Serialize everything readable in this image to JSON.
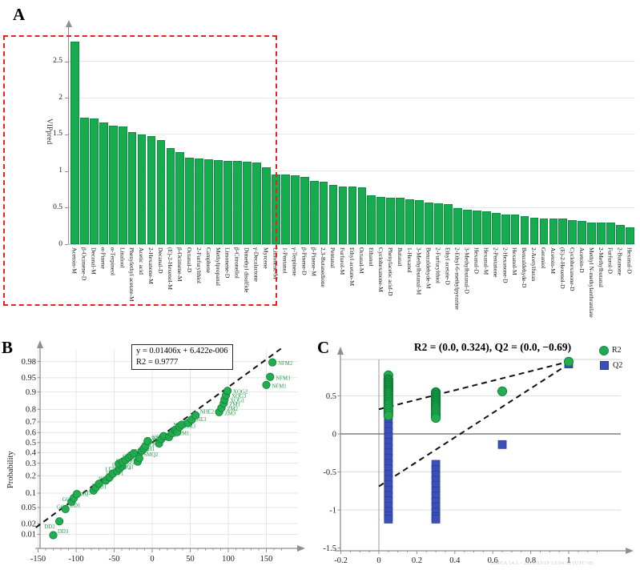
{
  "figure": {
    "footer_watermark": "SIMCA 14.1 - 2020/03/19 13:04:32 (UTC+8)"
  },
  "colors": {
    "bar_green": "#15ab4e",
    "point_green": "#22ad4f",
    "point_green_edge": "#0e7e38",
    "point_label_green": "#1d9e46",
    "q2_blue": "#3a50b8",
    "q2_blue_edge": "#2c3e99",
    "highlight_red": "#ea211e",
    "grid_gray": "#e4e4e4",
    "axis_gray": "#8f8f8f"
  },
  "chart_data": [
    {
      "panel_label": "A",
      "type": "bar",
      "ylabel": "VIPpred",
      "ylim": [
        0,
        2.9
      ],
      "yticks": [
        0,
        0.5,
        1,
        1.5,
        2,
        2.5
      ],
      "grid": true,
      "highlight_bars_count": 21,
      "categories": [
        "Acetoin-M",
        "β-Ocimene-D",
        "Decanal-M",
        "α-Pinene",
        "α-Terpineol",
        "Linalool",
        "Phenylethyl acetate-M",
        "Acetic acid",
        "2-Hexanone-M",
        "Decanal-D",
        "(E)-2-Hexenol-M",
        "β-Ocimene-M",
        "Octanal-D",
        "2-Furfurylthiol",
        "Camphene",
        "Methylpropanal",
        "Limonene-D",
        "β-Citronellol",
        "Dimethyl disulfide",
        "γ-Decalactone",
        "Myrcene",
        "Limonene-M",
        "1-Pentanol",
        "γ-Terpinene",
        "β-Pinene-D",
        "β-Pinene-M",
        "2,3-Butanedione",
        "Pentanal",
        "Furfurol-M",
        "Ethyl acetate-M",
        "Octanal-M",
        "Ethanol",
        "Cyclohexanone-M",
        "Phenylacetic acid-D",
        "Butanal",
        "1-Hexanol",
        "3-Methylbutanal-M",
        "Benzaldehyde-M",
        "2-Furfurylthiol",
        "Ethyl acetate-D",
        "2-Ethyl-6-methylpyrazine",
        "3-Methylbutanal-D",
        "Hexanal-D",
        "Hexanal-M",
        "2-Pentanone",
        "2-Hexanone-D",
        "Hexanol-M",
        "Benzaldehyde-D",
        "2-Acetylfuran",
        "Geraniol",
        "Acetoin-M",
        "(E)-2-Hexenol-D",
        "Cyclohexanone-D",
        "Acetoin-D",
        "Methyl N-methylanthranilate",
        "2-Methylbutanal",
        "Furfurol-D",
        "2-Butanone",
        "Hexanal-D"
      ],
      "values": [
        2.77,
        1.73,
        1.72,
        1.66,
        1.62,
        1.61,
        1.53,
        1.5,
        1.48,
        1.42,
        1.31,
        1.26,
        1.18,
        1.17,
        1.16,
        1.15,
        1.14,
        1.14,
        1.13,
        1.12,
        1.05,
        0.95,
        0.95,
        0.94,
        0.92,
        0.86,
        0.85,
        0.81,
        0.79,
        0.79,
        0.78,
        0.67,
        0.65,
        0.64,
        0.63,
        0.61,
        0.6,
        0.57,
        0.56,
        0.55,
        0.49,
        0.47,
        0.46,
        0.45,
        0.43,
        0.41,
        0.41,
        0.38,
        0.36,
        0.35,
        0.35,
        0.35,
        0.33,
        0.32,
        0.3,
        0.3,
        0.3,
        0.26,
        0.23
      ]
    },
    {
      "panel_label": "B",
      "type": "scatter",
      "ylabel": "Probability",
      "xlim": [
        -160,
        185
      ],
      "xticks": [
        -150,
        -100,
        -50,
        0,
        50,
        100,
        150
      ],
      "yticks": [
        0.01,
        0.02,
        0.05,
        0.1,
        0.2,
        0.3,
        0.4,
        0.5,
        0.6,
        0.7,
        0.8,
        0.9,
        0.95,
        0.98
      ],
      "grid": true,
      "annotation": {
        "line1": "y = 0.01406x + 6.422e-006",
        "line2": "R2 = 0.9777"
      },
      "fit_line": {
        "slope": 0.01406,
        "intercept": 6.422e-06
      },
      "points": [
        {
          "label": "DD3",
          "x": -130,
          "p": 0.0095
        },
        {
          "label": "DD2",
          "x": -122,
          "p": 0.023
        },
        {
          "label": "DD1",
          "x": -114,
          "p": 0.046
        },
        {
          "label": "GC1",
          "x": -106,
          "p": 0.067
        },
        {
          "label": "GC2",
          "x": -103,
          "p": 0.08
        },
        {
          "label": "GC3",
          "x": -99,
          "p": 0.096
        },
        {
          "label": "XJ1",
          "x": -77,
          "p": 0.112
        },
        {
          "label": "XJ3",
          "x": -74,
          "p": 0.128
        },
        {
          "label": "XJ2",
          "x": -70,
          "p": 0.148
        },
        {
          "label": "BT2",
          "x": -61,
          "p": 0.168
        },
        {
          "label": "BT1",
          "x": -56,
          "p": 0.19
        },
        {
          "label": "BT3",
          "x": -52,
          "p": 0.215
        },
        {
          "label": "LP3",
          "x": -46,
          "p": 0.235
        },
        {
          "label": "LP1",
          "x": -43,
          "p": 0.255
        },
        {
          "label": "LP2",
          "x": -40,
          "p": 0.272
        },
        {
          "label": "LF1",
          "x": -44,
          "p": 0.295
        },
        {
          "label": "LF2",
          "x": -39,
          "p": 0.312
        },
        {
          "label": "LF3",
          "x": -35,
          "p": 0.33
        },
        {
          "label": "CX1",
          "x": -31,
          "p": 0.352
        },
        {
          "label": "CX2",
          "x": -28,
          "p": 0.372
        },
        {
          "label": "CX3",
          "x": -24,
          "p": 0.392
        },
        {
          "label": "SMQ3",
          "x": -19,
          "p": 0.315
        },
        {
          "label": "SMQ2",
          "x": -17,
          "p": 0.345
        },
        {
          "label": "SMQ1",
          "x": -14,
          "p": 0.415
        },
        {
          "label": "YF1",
          "x": -11,
          "p": 0.44
        },
        {
          "label": "YF2",
          "x": -9,
          "p": 0.465
        },
        {
          "label": "YF3",
          "x": -6,
          "p": 0.515
        },
        {
          "label": "HH1",
          "x": 9,
          "p": 0.49
        },
        {
          "label": "HH3",
          "x": 12,
          "p": 0.535
        },
        {
          "label": "HH2",
          "x": 15,
          "p": 0.565
        },
        {
          "label": "WZM1",
          "x": 22,
          "p": 0.555
        },
        {
          "label": "WZM2",
          "x": 26,
          "p": 0.595
        },
        {
          "label": "WZM3",
          "x": 30,
          "p": 0.625
        },
        {
          "label": "JP1",
          "x": 33,
          "p": 0.605
        },
        {
          "label": "JP3",
          "x": 36,
          "p": 0.655
        },
        {
          "label": "JP2",
          "x": 39,
          "p": 0.675
        },
        {
          "label": "NHE3",
          "x": 47,
          "p": 0.69
        },
        {
          "label": "NHE1",
          "x": 52,
          "p": 0.72
        },
        {
          "label": "NHE2",
          "x": 57,
          "p": 0.755
        },
        {
          "label": "ZM3",
          "x": 88,
          "p": 0.78
        },
        {
          "label": "ZM2",
          "x": 91,
          "p": 0.81
        },
        {
          "label": "ZM1",
          "x": 94,
          "p": 0.84
        },
        {
          "label": "XQG1",
          "x": 95,
          "p": 0.862
        },
        {
          "label": "XQG3",
          "x": 97,
          "p": 0.885
        },
        {
          "label": "XQG2",
          "x": 99,
          "p": 0.905
        },
        {
          "label": "NFM1",
          "x": 150,
          "p": 0.928
        },
        {
          "label": "NFM3",
          "x": 155,
          "p": 0.952
        },
        {
          "label": "NFM2",
          "x": 158,
          "p": 0.979
        }
      ]
    },
    {
      "panel_label": "C",
      "type": "scatter",
      "title": "R2 = (0.0, 0.324), Q2 = (0.0, −0.69)",
      "xlim": [
        -0.25,
        1.2
      ],
      "ylim": [
        -1.55,
        0.98
      ],
      "xticks": [
        -0.2,
        0,
        0.2,
        0.4,
        0.6,
        0.8,
        1
      ],
      "yticks": [
        0.5,
        0,
        -0.5,
        -1,
        -1.5
      ],
      "legend": [
        {
          "label": "R2",
          "marker": "circle",
          "color": "#1faa50"
        },
        {
          "label": "Q2",
          "marker": "square",
          "color": "#3a50b8"
        }
      ],
      "r2_line": [
        [
          0,
          0.324
        ],
        [
          1,
          0.95
        ]
      ],
      "q2_line": [
        [
          0,
          -0.69
        ],
        [
          1,
          0.92
        ]
      ],
      "r2_points": [
        {
          "x": 0.05,
          "ys": [
            0.77,
            0.72,
            0.705,
            0.69,
            0.675,
            0.66,
            0.645,
            0.63,
            0.615,
            0.6,
            0.585,
            0.57,
            0.555,
            0.54,
            0.52,
            0.5,
            0.48,
            0.46,
            0.44,
            0.42,
            0.4,
            0.38,
            0.355,
            0.33,
            0.3,
            0.27,
            0.24
          ]
        },
        {
          "x": 0.3,
          "ys": [
            0.55,
            0.535,
            0.52,
            0.505,
            0.49,
            0.475,
            0.46,
            0.445,
            0.43,
            0.415,
            0.4,
            0.385,
            0.37,
            0.35,
            0.33,
            0.31,
            0.285,
            0.26,
            0.235,
            0.21
          ]
        },
        {
          "x": 0.65,
          "ys": [
            0.56
          ]
        },
        {
          "x": 1,
          "ys": [
            0.95
          ]
        }
      ],
      "q2_points": [
        {
          "x": 0.05,
          "ys": [
            0.17,
            0.1,
            0.03,
            -0.04,
            -0.11,
            -0.18,
            -0.25,
            -0.32,
            -0.39,
            -0.46,
            -0.53,
            -0.6,
            -0.67,
            -0.74,
            -0.81,
            -0.88,
            -0.95,
            -1.02,
            -1.08,
            -1.12
          ]
        },
        {
          "x": 0.3,
          "ys": [
            -0.4,
            -0.47,
            -0.54,
            -0.61,
            -0.68,
            -0.75,
            -0.82,
            -0.89,
            -0.96,
            -1.03,
            -1.09,
            -1.12
          ]
        },
        {
          "x": 0.65,
          "ys": [
            -0.14
          ]
        },
        {
          "x": 1,
          "ys": [
            0.92
          ]
        }
      ]
    }
  ]
}
